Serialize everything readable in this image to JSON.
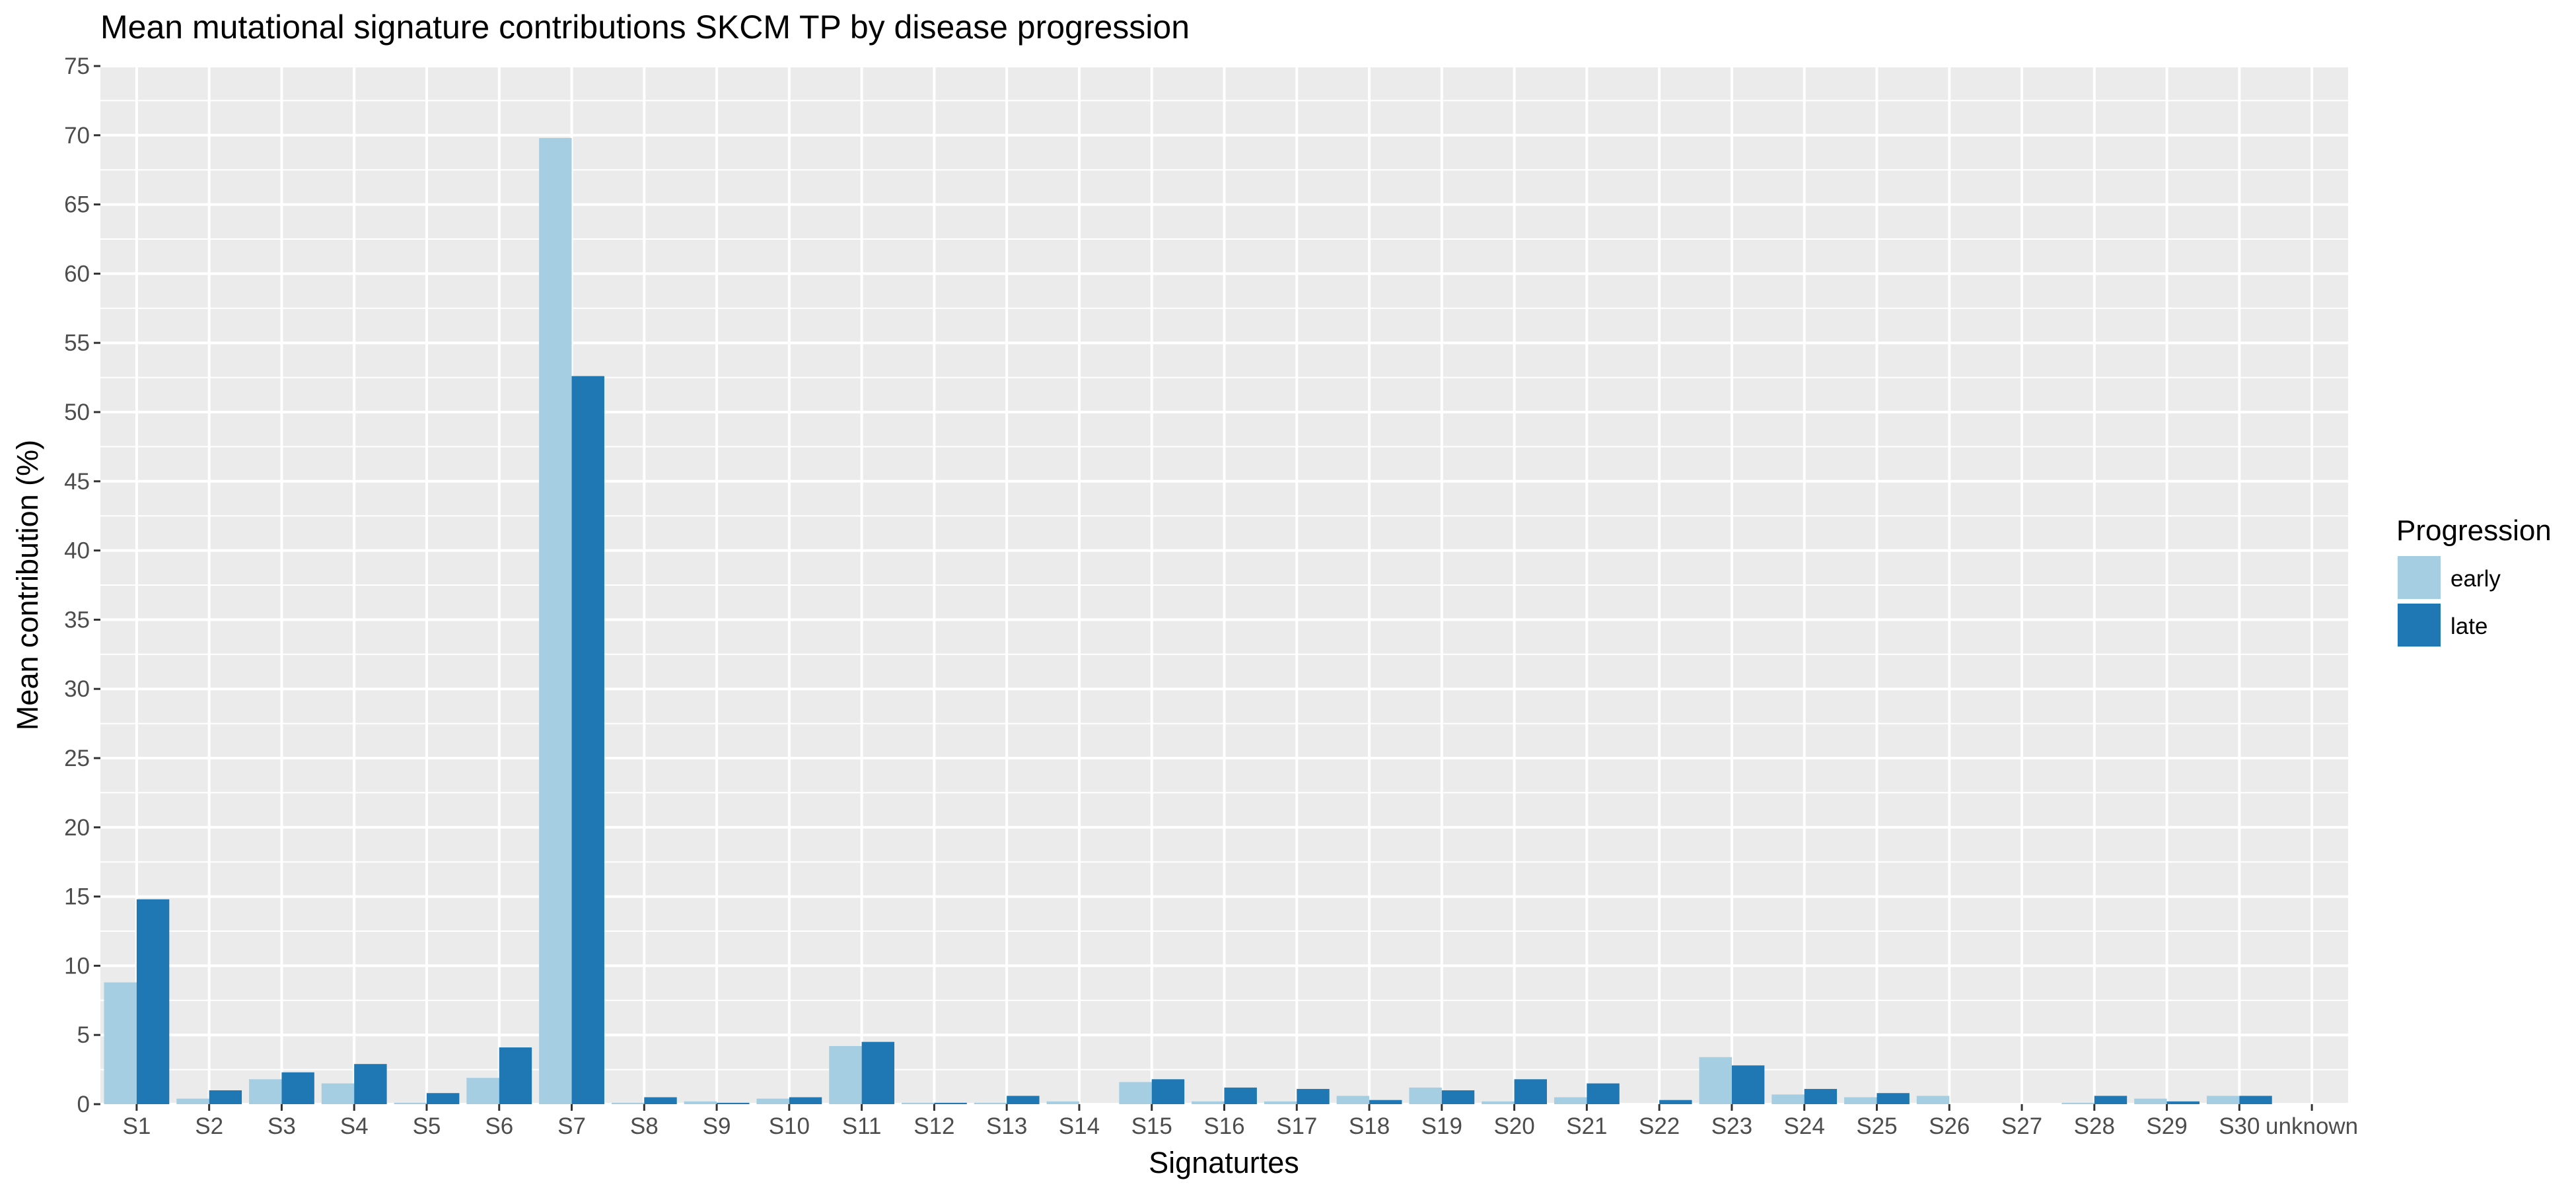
{
  "chart_data": {
    "type": "bar",
    "title": "Mean mutational signature contributions SKCM TP by disease progression",
    "xlabel": "Signaturtes",
    "ylabel": "Mean contribution (%)",
    "ylim": [
      0,
      75
    ],
    "yticks": [
      0,
      5,
      10,
      15,
      20,
      25,
      30,
      35,
      40,
      45,
      50,
      55,
      60,
      65,
      70,
      75
    ],
    "grid": true,
    "legend_position": "right",
    "legend_title": "Progression",
    "categories": [
      "S1",
      "S2",
      "S3",
      "S4",
      "S5",
      "S6",
      "S7",
      "S8",
      "S9",
      "S10",
      "S11",
      "S12",
      "S13",
      "S14",
      "S15",
      "S16",
      "S17",
      "S18",
      "S19",
      "S20",
      "S21",
      "S22",
      "S23",
      "S24",
      "S25",
      "S26",
      "S27",
      "S28",
      "S29",
      "S30",
      "unknown"
    ],
    "series": [
      {
        "name": "early",
        "color": "#a6cee3",
        "values": [
          8.8,
          0.4,
          1.8,
          1.5,
          0.1,
          1.9,
          69.8,
          0.1,
          0.2,
          0.4,
          4.2,
          0.1,
          0.1,
          0.2,
          1.6,
          0.2,
          0.2,
          0.6,
          1.2,
          0.2,
          0.5,
          0.0,
          3.4,
          0.7,
          0.5,
          0.6,
          0.0,
          0.1,
          0.4,
          0.6,
          0.0
        ]
      },
      {
        "name": "late",
        "color": "#1f78b4",
        "values": [
          14.8,
          1.0,
          2.3,
          2.9,
          0.8,
          4.1,
          52.6,
          0.5,
          0.1,
          0.5,
          4.5,
          0.1,
          0.6,
          0.0,
          1.8,
          1.2,
          1.1,
          0.3,
          1.0,
          1.8,
          1.5,
          0.3,
          2.8,
          1.1,
          0.8,
          0.0,
          0.0,
          0.6,
          0.2,
          0.6,
          0.0
        ]
      }
    ]
  },
  "colors": {
    "panel_background": "#ebebeb",
    "grid_line": "#ffffff"
  }
}
